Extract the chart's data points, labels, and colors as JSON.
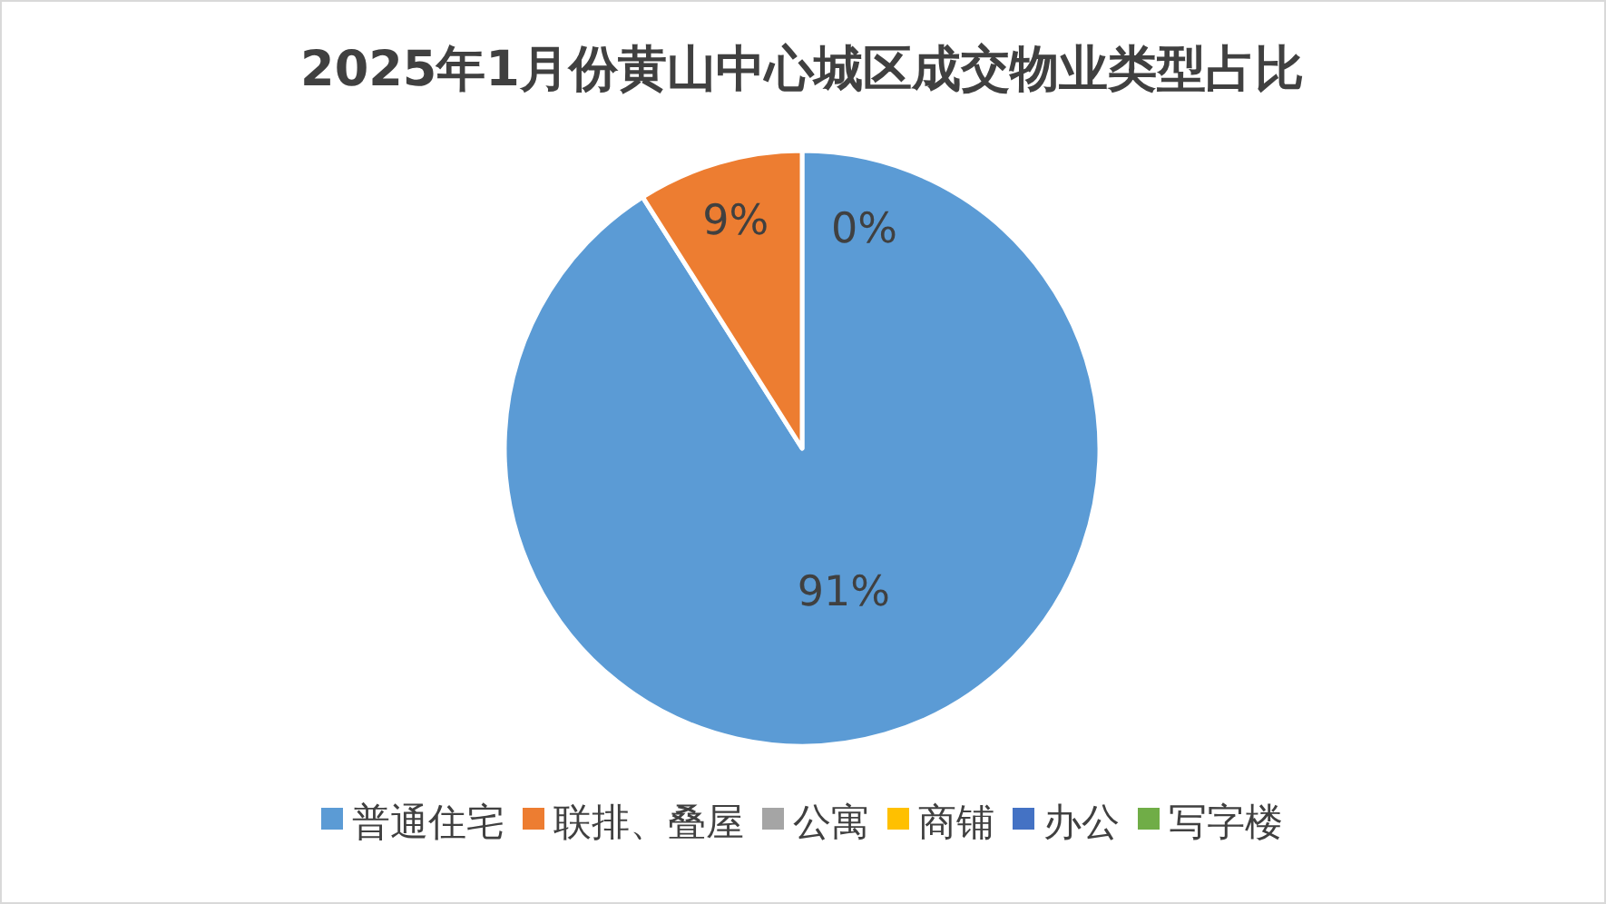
{
  "chart_data": {
    "type": "pie",
    "title": "2025年1月份黄山中心城区成交物业类型占比",
    "categories": [
      "普通住宅",
      "联排、叠屋",
      "公寓",
      "商铺",
      "办公",
      "写字楼"
    ],
    "values": [
      91,
      9,
      0,
      0,
      0,
      0
    ],
    "colors": [
      "#5b9bd5",
      "#ed7d31",
      "#a5a5a5",
      "#ffc000",
      "#4472c4",
      "#70ad47"
    ],
    "value_labels": [
      "91%",
      "9%",
      "0%",
      null,
      null,
      null
    ],
    "legend": "bottom"
  }
}
